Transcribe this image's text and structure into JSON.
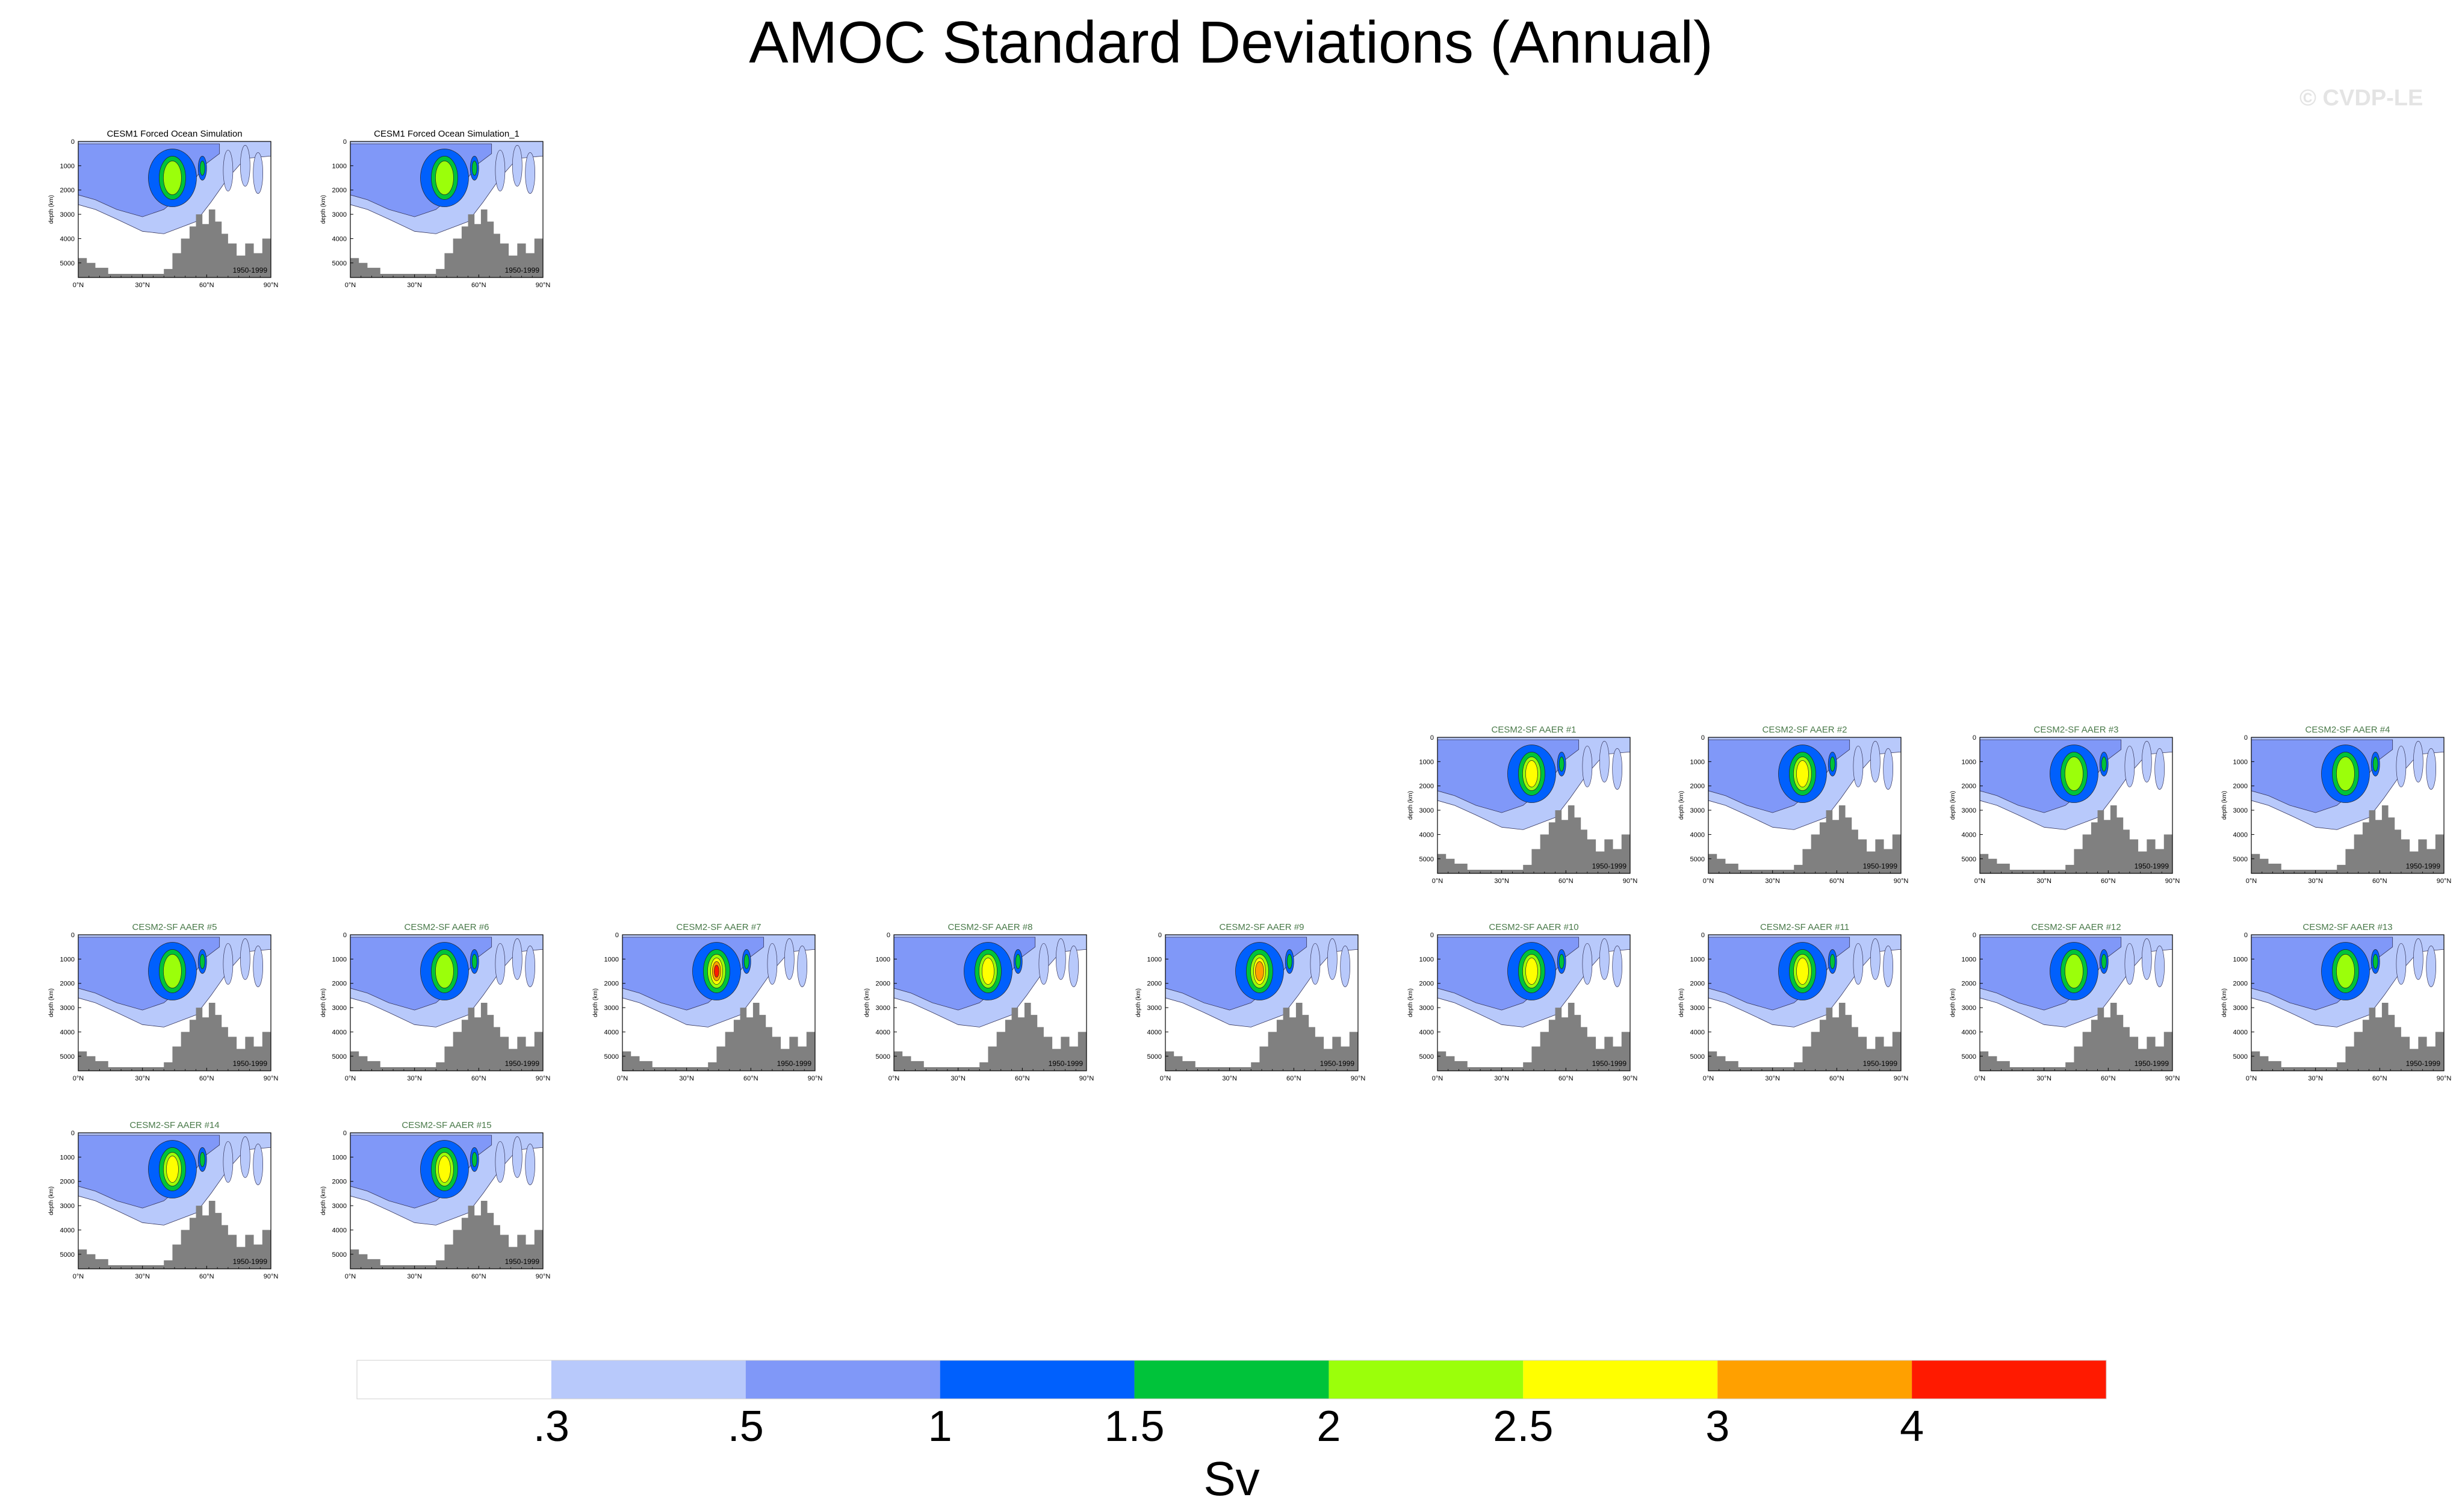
{
  "title": "AMOC Standard Deviations (Annual)",
  "watermark": "© CVDP-LE",
  "colors": {
    "land": "#808080",
    "levels": [
      "#ffffff",
      "#b8c9fb",
      "#8098f8",
      "#0060fd",
      "#00c33a",
      "#9bff0a",
      "#ffff00",
      "#ffa000",
      "#ff1a00"
    ]
  },
  "colorbar": {
    "label": "Sv",
    "ticks": [
      ".3",
      ".5",
      "1",
      "1.5",
      "2",
      "2.5",
      "3",
      "4"
    ]
  },
  "panel_axes": {
    "ylabel": "depth (km)",
    "yticks": [
      "0",
      "1000",
      "2000",
      "3000",
      "4000",
      "5000"
    ],
    "xticks": [
      "0°N",
      "30°N",
      "60°N",
      "90°N"
    ],
    "period": "1950-1999"
  },
  "chart_data": [
    {
      "type": "heatmap",
      "title": "CESM1 Forced Ocean Simulation",
      "max_level": 5
    },
    {
      "type": "heatmap",
      "title": "CESM1 Forced Ocean Simulation_1",
      "max_level": 5
    },
    {
      "type": "heatmap",
      "title": "CESM2-SF AAER #1",
      "max_level": 6
    },
    {
      "type": "heatmap",
      "title": "CESM2-SF AAER #2",
      "max_level": 6
    },
    {
      "type": "heatmap",
      "title": "CESM2-SF AAER #3",
      "max_level": 5
    },
    {
      "type": "heatmap",
      "title": "CESM2-SF AAER #4",
      "max_level": 5
    },
    {
      "type": "heatmap",
      "title": "CESM2-SF AAER #5",
      "max_level": 5
    },
    {
      "type": "heatmap",
      "title": "CESM2-SF AAER #6",
      "max_level": 5
    },
    {
      "type": "heatmap",
      "title": "CESM2-SF AAER #7",
      "max_level": 8
    },
    {
      "type": "heatmap",
      "title": "CESM2-SF AAER #8",
      "max_level": 6
    },
    {
      "type": "heatmap",
      "title": "CESM2-SF AAER #9",
      "max_level": 7
    },
    {
      "type": "heatmap",
      "title": "CESM2-SF AAER #10",
      "max_level": 6
    },
    {
      "type": "heatmap",
      "title": "CESM2-SF AAER #11",
      "max_level": 6
    },
    {
      "type": "heatmap",
      "title": "CESM2-SF AAER #12",
      "max_level": 5
    },
    {
      "type": "heatmap",
      "title": "CESM2-SF AAER #13",
      "max_level": 5
    },
    {
      "type": "heatmap",
      "title": "CESM2-SF AAER #14",
      "max_level": 6
    },
    {
      "type": "heatmap",
      "title": "CESM2-SF AAER #15",
      "max_level": 6
    }
  ]
}
